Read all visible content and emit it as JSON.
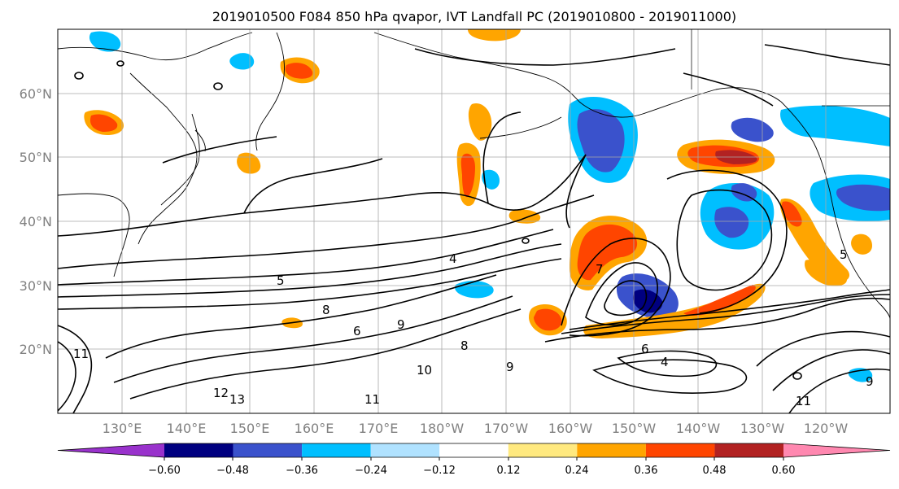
{
  "figure": {
    "title": "2019010500 F084 850 hPa qvapor, IVT Landfall PC (2019010800 - 2019011000)"
  },
  "map": {
    "lat_labels": [
      "60°N",
      "50°N",
      "40°N",
      "30°N",
      "20°N"
    ],
    "lon_labels": [
      "130°E",
      "140°E",
      "150°E",
      "160°E",
      "170°E",
      "180°W",
      "170°W",
      "160°W",
      "150°W",
      "140°W",
      "130°W",
      "120°W"
    ],
    "contour_labels": [
      "5",
      "4",
      "8",
      "6",
      "9",
      "10",
      "11",
      "12",
      "13",
      "8",
      "9",
      "7",
      "6",
      "4",
      "5",
      "9",
      "11",
      "11"
    ]
  },
  "colorbar": {
    "colors": [
      "#9932CC",
      "#000080",
      "#3A52CC",
      "#00BFFF",
      "#B0E2FF",
      "#FFFFFF",
      "#FFE97F",
      "#FFA500",
      "#FF4500",
      "#B22222",
      "#FF88B0"
    ],
    "tick_labels": [
      "−0.60",
      "−0.48",
      "−0.36",
      "−0.24",
      "−0.12",
      "0.12",
      "0.24",
      "0.36",
      "0.48",
      "0.60"
    ]
  }
}
